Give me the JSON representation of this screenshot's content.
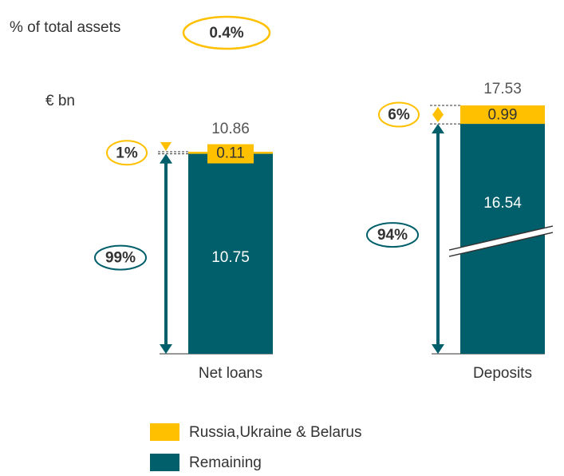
{
  "chart_data": {
    "type": "bar",
    "stacked": true,
    "assets_label": "% of total assets",
    "assets_share": "0.4%",
    "unit": "€ bn",
    "categories": [
      "Net loans",
      "Deposits"
    ],
    "totals": [
      10.86,
      17.53
    ],
    "broken": [
      false,
      true
    ],
    "series": [
      {
        "name": "Russia,Ukraine & Belarus",
        "color": "#ffc000",
        "values": [
          0.11,
          0.99
        ],
        "share_labels": [
          "1%",
          "6%"
        ]
      },
      {
        "name": "Remaining",
        "color": "#005f6a",
        "values": [
          10.75,
          16.54
        ],
        "share_labels": [
          "99%",
          "94%"
        ]
      }
    ]
  }
}
